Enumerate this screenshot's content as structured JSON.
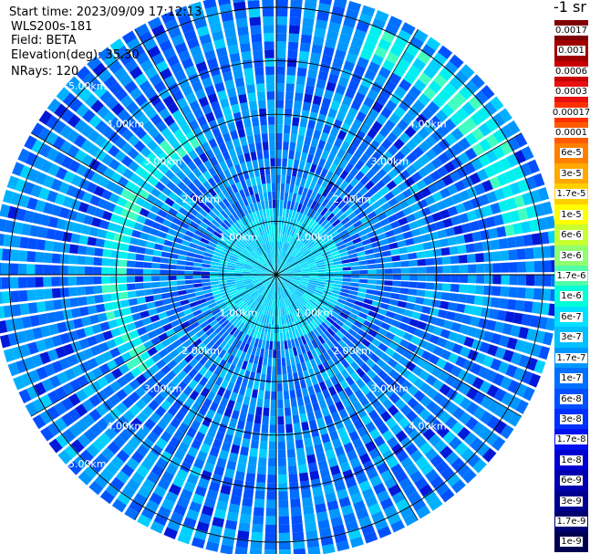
{
  "header": {
    "start_time": "Start time: 2023/09/09 17:12:13",
    "instrument": "WLS200s-181",
    "field": "Field: BETA",
    "elevation": "Elevation(deg): 35.30",
    "nrays": "NRays: 120"
  },
  "legend": {
    "unit_label": "-1 sr",
    "items": [
      {
        "label": "0.0017",
        "color": "#800000"
      },
      {
        "label": "0.001",
        "color": "#a00000"
      },
      {
        "label": "0.0006",
        "color": "#c80000"
      },
      {
        "label": "0.0003",
        "color": "#e81010"
      },
      {
        "label": "0.00017",
        "color": "#ff3000"
      },
      {
        "label": "0.0001",
        "color": "#ff5a00"
      },
      {
        "label": "6e-5",
        "color": "#ff8000"
      },
      {
        "label": "3e-5",
        "color": "#ffa800"
      },
      {
        "label": "1.7e-5",
        "color": "#ffd000"
      },
      {
        "label": "1e-5",
        "color": "#ffff00"
      },
      {
        "label": "6e-6",
        "color": "#c8ff30"
      },
      {
        "label": "3e-6",
        "color": "#90ff70"
      },
      {
        "label": "1.7e-6",
        "color": "#50ffa8"
      },
      {
        "label": "1e-6",
        "color": "#00ffd8"
      },
      {
        "label": "6e-7",
        "color": "#00e0ff"
      },
      {
        "label": "3e-7",
        "color": "#00c0ff"
      },
      {
        "label": "1.7e-7",
        "color": "#0098ff"
      },
      {
        "label": "1e-7",
        "color": "#0070ff"
      },
      {
        "label": "6e-8",
        "color": "#0050ff"
      },
      {
        "label": "3e-8",
        "color": "#0030ff"
      },
      {
        "label": "1.7e-8",
        "color": "#0010f0"
      },
      {
        "label": "1e-8",
        "color": "#0000d0"
      },
      {
        "label": "6e-9",
        "color": "#0000b0"
      },
      {
        "label": "3e-9",
        "color": "#000090"
      },
      {
        "label": "1.7e-9",
        "color": "#000070"
      },
      {
        "label": "1e-9",
        "color": "#000050"
      }
    ]
  },
  "chart_data": {
    "type": "heatmap",
    "projection": "polar-ppi",
    "title": "",
    "field": "BETA",
    "elevation_deg": 35.3,
    "n_rays": 120,
    "max_range_km": 5.3,
    "range_rings_km": [
      1,
      2,
      3,
      4,
      5
    ],
    "spokes_deg": [
      0,
      30,
      60,
      90,
      120,
      150,
      180,
      210,
      240,
      270,
      300,
      330
    ],
    "ring_labels": [
      {
        "text": "1.00km",
        "range_km": 1,
        "angle_deg": 315
      },
      {
        "text": "1.00km",
        "range_km": 1,
        "angle_deg": 45
      },
      {
        "text": "1.00km",
        "range_km": 1,
        "angle_deg": 225
      },
      {
        "text": "1.00km",
        "range_km": 1,
        "angle_deg": 135
      },
      {
        "text": "2.00km",
        "range_km": 2,
        "angle_deg": 315
      },
      {
        "text": "2.00km",
        "range_km": 2,
        "angle_deg": 45
      },
      {
        "text": "2.00km",
        "range_km": 2,
        "angle_deg": 225
      },
      {
        "text": "2.00km",
        "range_km": 2,
        "angle_deg": 135
      },
      {
        "text": "3.00km",
        "range_km": 3,
        "angle_deg": 315
      },
      {
        "text": "3.00km",
        "range_km": 3,
        "angle_deg": 45
      },
      {
        "text": "3.00km",
        "range_km": 3,
        "angle_deg": 225
      },
      {
        "text": "3.00km",
        "range_km": 3,
        "angle_deg": 135
      },
      {
        "text": "4.00km",
        "range_km": 4,
        "angle_deg": 315
      },
      {
        "text": "4.00km",
        "range_km": 4,
        "angle_deg": 45
      },
      {
        "text": "4.00km",
        "range_km": 4,
        "angle_deg": 225
      },
      {
        "text": "4.00km",
        "range_km": 4,
        "angle_deg": 135
      },
      {
        "text": "5.00km",
        "range_km": 5,
        "angle_deg": 315
      },
      {
        "text": "5.00km",
        "range_km": 5,
        "angle_deg": 225
      }
    ],
    "color_scale": [
      "1e-9",
      "1.7e-9",
      "3e-9",
      "6e-9",
      "1e-8",
      "1.7e-8",
      "3e-8",
      "6e-8",
      "1e-7",
      "1.7e-7",
      "3e-7",
      "6e-7",
      "1e-6",
      "1.7e-6",
      "3e-6",
      "6e-6",
      "1e-5",
      "1.7e-5",
      "3e-5",
      "6e-5",
      "0.0001",
      "0.00017",
      "0.0003",
      "0.0006",
      "0.001",
      "0.0017"
    ],
    "features": [
      {
        "description_value": "1e-6",
        "az_from_deg": 20,
        "az_to_deg": 80,
        "range_from_km": 4.3,
        "range_to_km": 5.0
      },
      {
        "description_value": "3e-6",
        "az_from_deg": 45,
        "az_to_deg": 60,
        "range_from_km": 4.4,
        "range_to_km": 4.8
      },
      {
        "description_value": "1e-6",
        "az_from_deg": 235,
        "az_to_deg": 330,
        "range_from_km": 2.8,
        "range_to_km": 3.2
      },
      {
        "description_value": "1.7e-6",
        "az_from_deg": 0,
        "az_to_deg": 360,
        "range_from_km": 0.2,
        "range_to_km": 1.2
      }
    ]
  }
}
